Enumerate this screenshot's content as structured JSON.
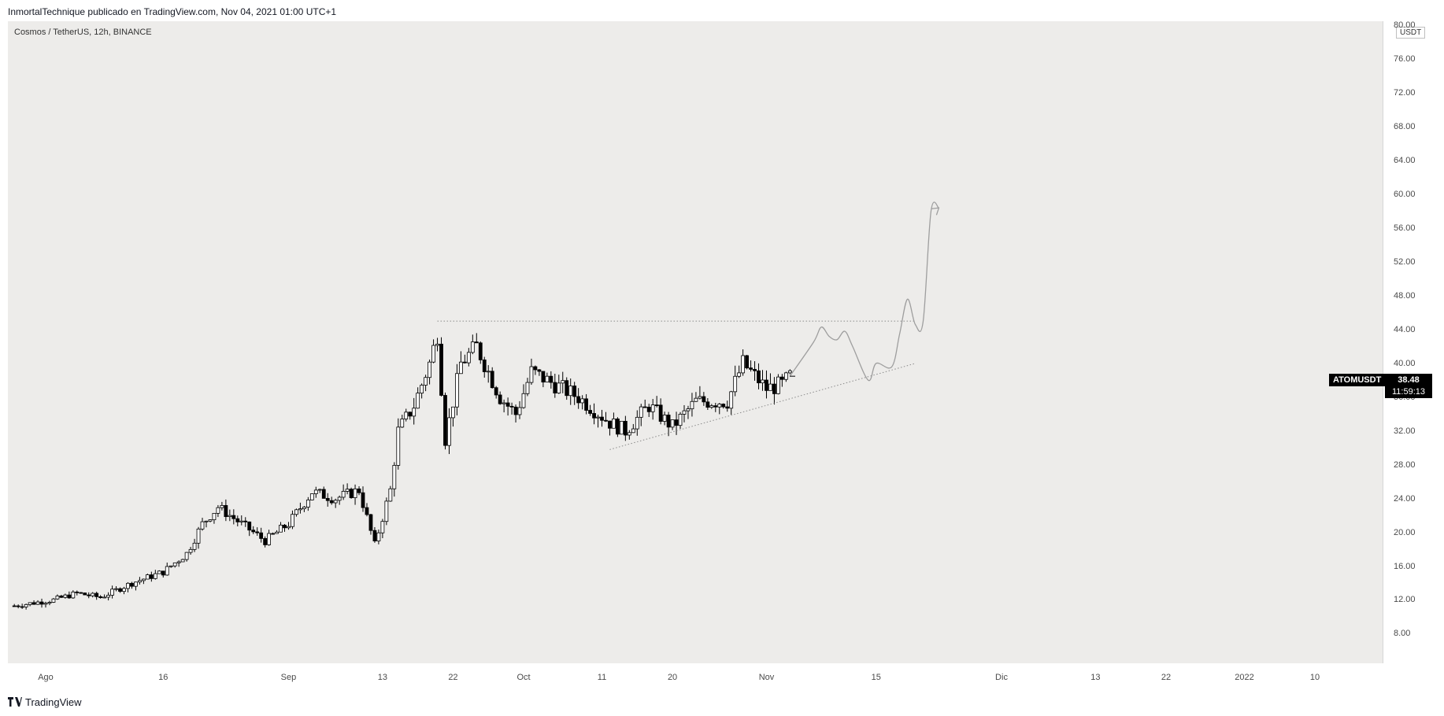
{
  "header": {
    "publisher_line": "InmortalTechnique publicado en TradingView.com, Nov 04, 2021 01:00 UTC+1"
  },
  "symbol": {
    "description": "Cosmos / TetherUS, 12h, BINANCE",
    "ticker": "ATOMUSDT",
    "currency": "USDT",
    "last_price": "38.48",
    "countdown": "11:59:13"
  },
  "colors": {
    "chart_bg": "#edecea",
    "candle": "#000000",
    "projection": "#9e9e9e",
    "trendline": "#8a8a8a"
  },
  "footer": {
    "brand": "TradingView",
    "brand_icon": "tradingview-logo-icon"
  },
  "chart_data": {
    "type": "candlestick",
    "title": "Cosmos / TetherUS, 12h, BINANCE",
    "y_axis": {
      "ticks": [
        "8.00",
        "12.00",
        "16.00",
        "20.00",
        "24.00",
        "28.00",
        "32.00",
        "36.00",
        "40.00",
        "44.00",
        "48.00",
        "52.00",
        "56.00",
        "60.00",
        "64.00",
        "68.00",
        "72.00",
        "76.00",
        "80.00"
      ],
      "ylim": [
        4.5,
        80.5
      ]
    },
    "x_axis": {
      "tick_labels": [
        "Ago",
        "16",
        "Sep",
        "13",
        "22",
        "Oct",
        "11",
        "20",
        "Nov",
        "15",
        "Dic",
        "13",
        "22",
        "2022",
        "10"
      ],
      "tick_dates": [
        "2021-08-01",
        "2021-08-16",
        "2021-09-01",
        "2021-09-13",
        "2021-09-22",
        "2021-10-01",
        "2021-10-11",
        "2021-10-20",
        "2021-11-01",
        "2021-11-15",
        "2021-12-01",
        "2021-12-13",
        "2021-12-22",
        "2022-01-01",
        "2022-01-10"
      ]
    },
    "price_keypoints": [
      [
        "2021-07-28",
        11.3
      ],
      [
        "2021-08-02",
        12.0
      ],
      [
        "2021-08-05",
        12.8
      ],
      [
        "2021-08-08",
        12.3
      ],
      [
        "2021-08-12",
        14.0
      ],
      [
        "2021-08-16",
        15.3
      ],
      [
        "2021-08-19",
        17.5
      ],
      [
        "2021-08-21",
        21.0
      ],
      [
        "2021-08-23",
        23.0
      ],
      [
        "2021-08-26",
        21.0
      ],
      [
        "2021-08-29",
        19.0
      ],
      [
        "2021-09-01",
        21.0
      ],
      [
        "2021-09-04",
        24.8
      ],
      [
        "2021-09-07",
        24.0
      ],
      [
        "2021-09-10",
        25.0
      ],
      [
        "2021-09-12",
        18.5
      ],
      [
        "2021-09-14",
        25.0
      ],
      [
        "2021-09-15",
        32.0
      ],
      [
        "2021-09-17",
        35.0
      ],
      [
        "2021-09-19",
        40.0
      ],
      [
        "2021-09-20",
        43.5
      ],
      [
        "2021-09-21",
        31.0
      ],
      [
        "2021-09-23",
        40.0
      ],
      [
        "2021-09-25",
        42.0
      ],
      [
        "2021-09-28",
        36.0
      ],
      [
        "2021-09-30",
        34.0
      ],
      [
        "2021-10-02",
        39.0
      ],
      [
        "2021-10-05",
        37.5
      ],
      [
        "2021-10-08",
        36.0
      ],
      [
        "2021-10-12",
        33.0
      ],
      [
        "2021-10-14",
        32.0
      ],
      [
        "2021-10-17",
        35.0
      ],
      [
        "2021-10-20",
        32.5
      ],
      [
        "2021-10-23",
        35.5
      ],
      [
        "2021-10-27",
        35.5
      ],
      [
        "2021-10-29",
        40.0
      ],
      [
        "2021-11-01",
        37.0
      ],
      [
        "2021-11-03",
        37.5
      ],
      [
        "2021-11-04",
        38.48
      ]
    ],
    "annotations": {
      "resistance": {
        "price": 45.0,
        "from": "2021-09-20",
        "to": "2021-11-20"
      },
      "ascending_trendline": {
        "from": [
          "2021-10-12",
          29.8
        ],
        "to": [
          "2021-11-20",
          40.0
        ]
      },
      "projection_path": [
        [
          "2021-11-04",
          38.5
        ],
        [
          "2021-11-07",
          42.5
        ],
        [
          "2021-11-08",
          44.3
        ],
        [
          "2021-11-09",
          43.2
        ],
        [
          "2021-11-10",
          42.8
        ],
        [
          "2021-11-11",
          43.8
        ],
        [
          "2021-11-12",
          42.0
        ],
        [
          "2021-11-14",
          38.0
        ],
        [
          "2021-11-15",
          40.0
        ],
        [
          "2021-11-17",
          39.6
        ],
        [
          "2021-11-18",
          43.5
        ],
        [
          "2021-11-19",
          47.6
        ],
        [
          "2021-11-20",
          44.6
        ],
        [
          "2021-11-21",
          45.0
        ],
        [
          "2021-11-22",
          58.0
        ],
        [
          "2021-11-23",
          58.4
        ]
      ]
    }
  }
}
